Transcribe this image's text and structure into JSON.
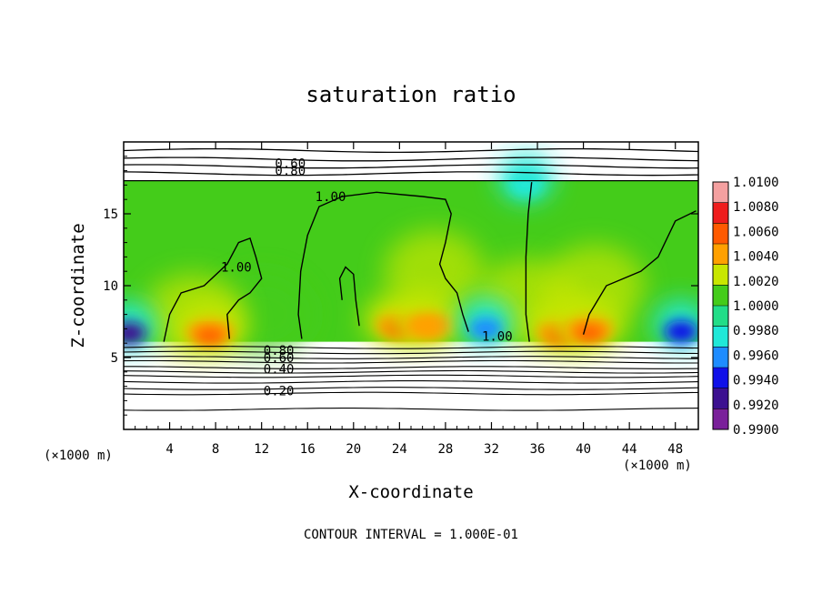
{
  "chart_data": {
    "type": "heatmap",
    "title": "saturation ratio",
    "xlabel": "X-coordinate",
    "ylabel": "Z-coordinate",
    "x_unit_left": "(×1000 m)",
    "x_unit_right": "(×1000 m)",
    "footer": "CONTOUR INTERVAL = 1.000E-01",
    "xlim": [
      0,
      50
    ],
    "ylim": [
      0,
      20
    ],
    "x_ticks": [
      4,
      8,
      12,
      16,
      20,
      24,
      28,
      32,
      36,
      40,
      44,
      48
    ],
    "y_ticks": [
      5,
      10,
      15
    ],
    "colorbar": {
      "levels": [
        "1.0100",
        "1.0080",
        "1.0060",
        "1.0040",
        "1.0020",
        "1.0000",
        "0.9980",
        "0.9960",
        "0.9940",
        "0.9920",
        "0.9900"
      ],
      "colors": [
        "#f4a0a0",
        "#ee1c1c",
        "#ff5a00",
        "#ffa000",
        "#c8e600",
        "#44cc1a",
        "#22dd88",
        "#20e8d8",
        "#1e8cff",
        "#1010e8",
        "#3c1090",
        "#7a209a"
      ]
    },
    "contour_labels": [
      {
        "text": "0.60",
        "x": 14.5,
        "y": 18.5
      },
      {
        "text": "0.80",
        "x": 14.5,
        "y": 18.0
      },
      {
        "text": "1.00",
        "x": 18.0,
        "y": 16.2
      },
      {
        "text": "1.00",
        "x": 9.8,
        "y": 11.3
      },
      {
        "text": "1.00",
        "x": 32.5,
        "y": 6.5
      },
      {
        "text": "0.80",
        "x": 13.5,
        "y": 5.5
      },
      {
        "text": "0.60",
        "x": 13.5,
        "y": 5.0
      },
      {
        "text": "0.40",
        "x": 13.5,
        "y": 4.2
      },
      {
        "text": "0.20",
        "x": 13.5,
        "y": 2.7
      }
    ],
    "field": {
      "cloud_top": 17.3,
      "cloud_base": 6.1,
      "hotspots": [
        {
          "x": 7.5,
          "z": 6.5,
          "v": 1.0065
        },
        {
          "x": 24.0,
          "z": 7.0,
          "v": 1.006
        },
        {
          "x": 26.5,
          "z": 7.0,
          "v": 1.0055
        },
        {
          "x": 38.0,
          "z": 6.5,
          "v": 1.007
        },
        {
          "x": 40.5,
          "z": 6.7,
          "v": 1.006
        }
      ],
      "coldspots": [
        {
          "x": 0.5,
          "z": 6.7,
          "v": 0.9915
        },
        {
          "x": 31.5,
          "z": 7.0,
          "v": 0.9945
        },
        {
          "x": 48.5,
          "z": 6.8,
          "v": 0.992
        },
        {
          "x": 35.0,
          "z": 17.0,
          "v": 0.996
        }
      ]
    }
  }
}
